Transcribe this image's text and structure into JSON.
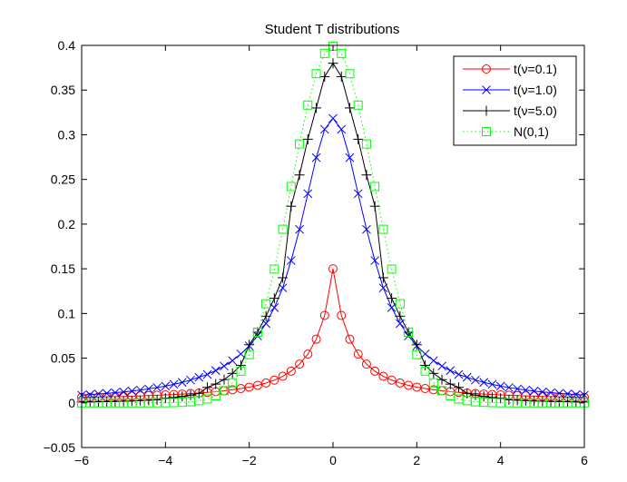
{
  "chart_data": {
    "type": "line",
    "title": "Student T distributions",
    "xlabel": "",
    "ylabel": "",
    "xlim": [
      -6,
      6
    ],
    "ylim": [
      -0.05,
      0.4
    ],
    "x_ticks": [
      -6,
      -4,
      -2,
      0,
      2,
      4,
      6
    ],
    "x_tick_labels": [
      "−6",
      "−4",
      "−2",
      "0",
      "2",
      "4",
      "6"
    ],
    "y_ticks": [
      -0.05,
      0,
      0.05,
      0.1,
      0.15,
      0.2,
      0.25,
      0.3,
      0.35,
      0.4
    ],
    "y_tick_labels": [
      "−0.05",
      "0",
      "0.05",
      "0.1",
      "0.15",
      "0.2",
      "0.25",
      "0.3",
      "0.35",
      "0.4"
    ],
    "grid": false,
    "legend_position": "top-right",
    "x": [
      -6.0,
      -5.8,
      -5.6,
      -5.4,
      -5.2,
      -5.0,
      -4.8,
      -4.6,
      -4.4,
      -4.2,
      -4.0,
      -3.8,
      -3.6,
      -3.4,
      -3.2,
      -3.0,
      -2.8,
      -2.6,
      -2.4,
      -2.2,
      -2.0,
      -1.8,
      -1.6,
      -1.4,
      -1.2,
      -1.0,
      -0.8,
      -0.6,
      -0.4,
      -0.2,
      0.0,
      0.2,
      0.4,
      0.6,
      0.8,
      1.0,
      1.2,
      1.4,
      1.6,
      1.8,
      2.0,
      2.2,
      2.4,
      2.6,
      2.8,
      3.0,
      3.2,
      3.4,
      3.6,
      3.8,
      4.0,
      4.2,
      4.4,
      4.6,
      4.8,
      5.0,
      5.2,
      5.4,
      5.6,
      5.8,
      6.0
    ],
    "series": [
      {
        "name": "t(ν=0.1)",
        "color": "#ff0000",
        "marker": "circle",
        "line": "solid",
        "values": [
          0.0061,
          0.0063,
          0.0065,
          0.0067,
          0.007,
          0.0072,
          0.0075,
          0.0078,
          0.0081,
          0.0085,
          0.0089,
          0.0093,
          0.0098,
          0.0104,
          0.011,
          0.0117,
          0.0125,
          0.0135,
          0.0146,
          0.016,
          0.0176,
          0.0196,
          0.0222,
          0.0254,
          0.0297,
          0.0354,
          0.0433,
          0.0545,
          0.0712,
          0.0978,
          0.15,
          0.0978,
          0.0712,
          0.0545,
          0.0433,
          0.0354,
          0.0297,
          0.0254,
          0.0222,
          0.0196,
          0.0176,
          0.016,
          0.0146,
          0.0135,
          0.0125,
          0.0117,
          0.011,
          0.0104,
          0.0098,
          0.0093,
          0.0089,
          0.0085,
          0.0081,
          0.0078,
          0.0075,
          0.0072,
          0.007,
          0.0067,
          0.0065,
          0.0063,
          0.0061
        ]
      },
      {
        "name": "t(ν=1.0)",
        "color": "#0000ff",
        "marker": "x",
        "line": "solid",
        "values": [
          0.0086,
          0.0092,
          0.0099,
          0.0106,
          0.0114,
          0.0122,
          0.0132,
          0.0143,
          0.0156,
          0.0171,
          0.0187,
          0.0207,
          0.0229,
          0.0255,
          0.0286,
          0.0318,
          0.0361,
          0.0411,
          0.0472,
          0.0547,
          0.0637,
          0.0749,
          0.0888,
          0.1066,
          0.1286,
          0.1592,
          0.1941,
          0.2341,
          0.2744,
          0.3061,
          0.3183,
          0.3061,
          0.2744,
          0.2341,
          0.1941,
          0.1592,
          0.1286,
          0.1066,
          0.0888,
          0.0749,
          0.0637,
          0.0547,
          0.0472,
          0.0411,
          0.0361,
          0.0318,
          0.0286,
          0.0255,
          0.0229,
          0.0207,
          0.0187,
          0.0171,
          0.0156,
          0.0143,
          0.0132,
          0.0122,
          0.0114,
          0.0106,
          0.0099,
          0.0092,
          0.0086
        ]
      },
      {
        "name": "t(ν=5.0)",
        "color": "#000000",
        "marker": "plus",
        "line": "solid",
        "values": [
          0.0009,
          0.001,
          0.0012,
          0.0014,
          0.0016,
          0.0018,
          0.0021,
          0.0025,
          0.0029,
          0.0034,
          0.0051,
          0.006,
          0.0072,
          0.0087,
          0.0106,
          0.0173,
          0.021,
          0.026,
          0.033,
          0.042,
          0.065,
          0.079,
          0.097,
          0.117,
          0.14,
          0.22,
          0.255,
          0.295,
          0.33,
          0.365,
          0.38,
          0.365,
          0.33,
          0.295,
          0.255,
          0.22,
          0.14,
          0.117,
          0.097,
          0.079,
          0.065,
          0.042,
          0.033,
          0.026,
          0.021,
          0.0173,
          0.0106,
          0.0087,
          0.0072,
          0.006,
          0.0051,
          0.0034,
          0.0029,
          0.0025,
          0.0021,
          0.0018,
          0.0016,
          0.0014,
          0.0012,
          0.001,
          0.0009
        ]
      },
      {
        "name": "N(0,1)",
        "color": "#00ff00",
        "marker": "square",
        "line": "dotted",
        "values": [
          0.0,
          0.0,
          0.0,
          0.0,
          0.0,
          0.0,
          0.0,
          0.0,
          0.0,
          0.0001,
          0.0001,
          0.0003,
          0.0006,
          0.0012,
          0.0024,
          0.0044,
          0.0079,
          0.0136,
          0.0224,
          0.0355,
          0.054,
          0.079,
          0.1109,
          0.1497,
          0.1942,
          0.242,
          0.2897,
          0.3332,
          0.3683,
          0.391,
          0.3989,
          0.391,
          0.3683,
          0.3332,
          0.2897,
          0.242,
          0.1942,
          0.1497,
          0.1109,
          0.079,
          0.054,
          0.0355,
          0.0224,
          0.0136,
          0.0079,
          0.0044,
          0.0024,
          0.0012,
          0.0006,
          0.0003,
          0.0001,
          0.0001,
          0.0,
          0.0,
          0.0,
          0.0,
          0.0,
          0.0,
          0.0,
          0.0,
          0.0
        ]
      }
    ]
  }
}
